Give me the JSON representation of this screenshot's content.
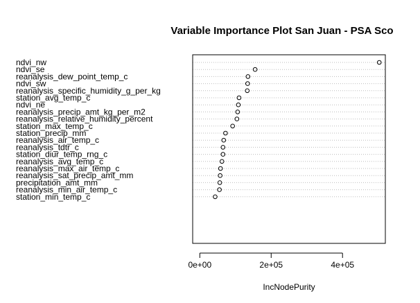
{
  "chart_data": {
    "type": "scatter",
    "title": "Variable Importance Plot San Juan - PSA Sco",
    "xlabel": "IncNodePurity",
    "ylabel": "",
    "xlim": [
      -20000,
      520000
    ],
    "grid": true,
    "x_ticks": [
      {
        "value": 0,
        "label": "0e+00"
      },
      {
        "value": 200000,
        "label": "2e+05"
      },
      {
        "value": 400000,
        "label": "4e+05"
      }
    ],
    "categories": [
      "ndvi_nw",
      "ndvi_se",
      "reanalysis_dew_point_temp_c",
      "ndvi_sw",
      "reanalysis_specific_humidity_g_per_kg",
      "station_avg_temp_c",
      "ndvi_ne",
      "reanalysis_precip_amt_kg_per_m2",
      "reanalysis_relative_humidity_percent",
      "station_max_temp_c",
      "station_precip_mm",
      "reanalysis_air_temp_c",
      "reanalysis_tdtr_c",
      "station_diur_temp_rng_c",
      "reanalysis_avg_temp_c",
      "reanalysis_max_air_temp_c",
      "reanalysis_sat_precip_amt_mm",
      "precipitation_amt_mm",
      "reanalysis_min_air_temp_c",
      "station_min_temp_c"
    ],
    "values": [
      503000,
      155000,
      135000,
      134000,
      133000,
      110000,
      108000,
      106000,
      104000,
      92000,
      72000,
      67000,
      65000,
      65000,
      62000,
      58000,
      57000,
      56000,
      55000,
      43000
    ]
  }
}
